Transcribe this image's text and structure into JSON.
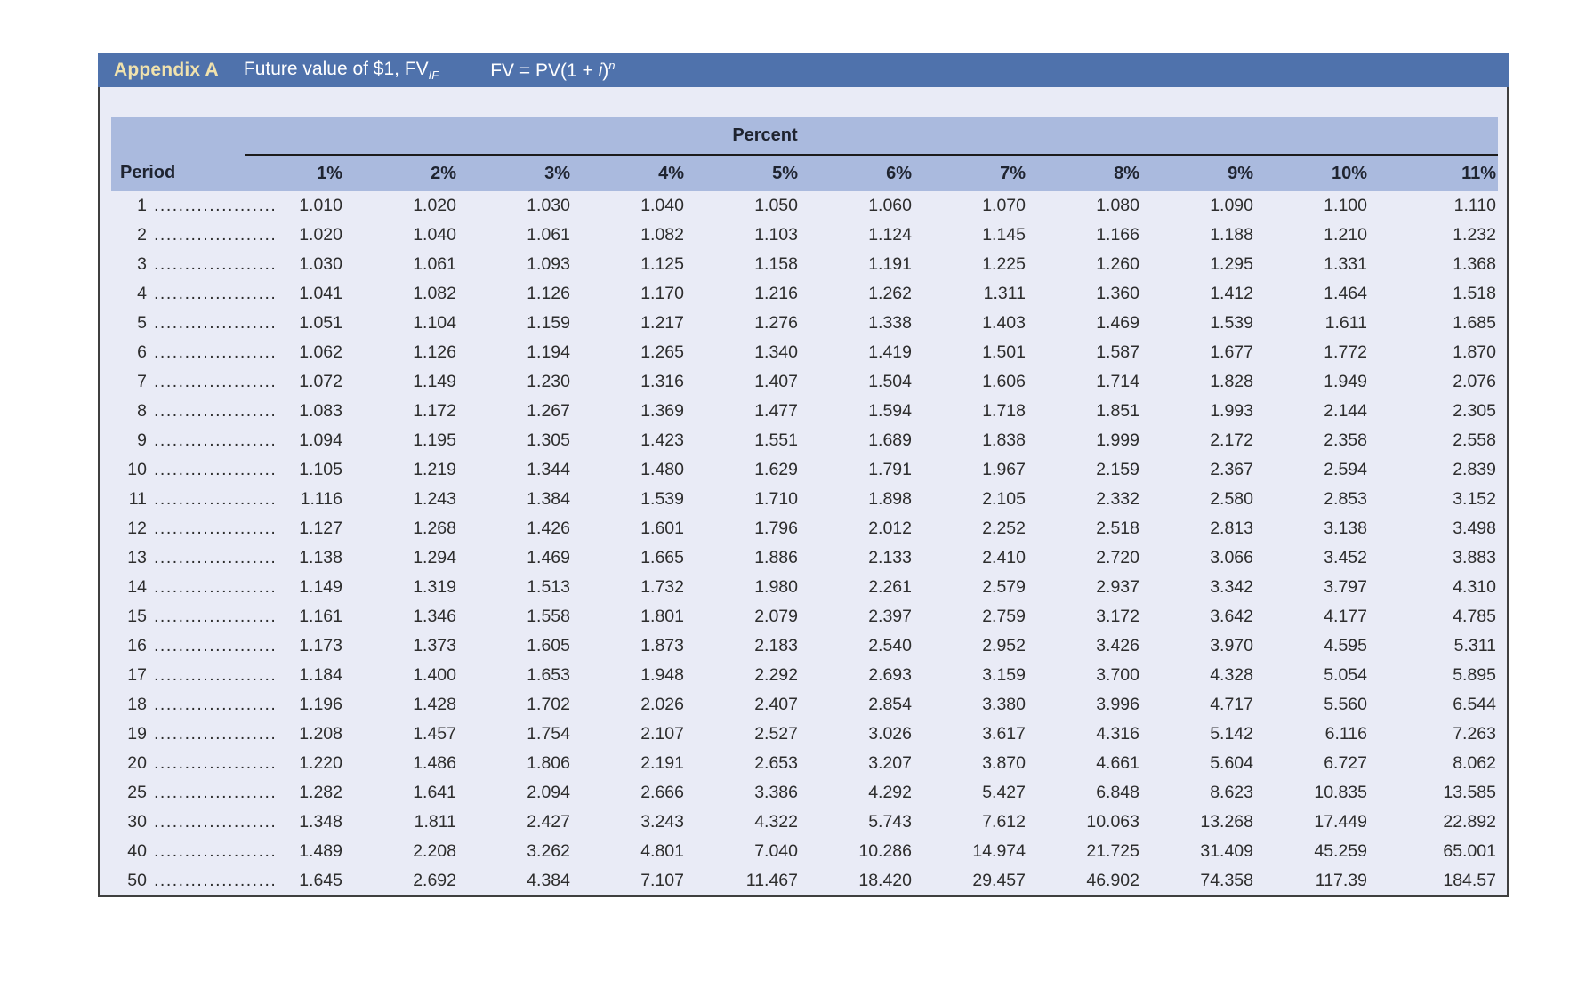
{
  "header": {
    "appendix_label": "Appendix A",
    "title_prefix": "Future value of $1, FV",
    "title_sub": "IF",
    "formula": {
      "lhs": "FV = PV(1 + ",
      "i": "i",
      "rhs": ")",
      "exp": "n"
    }
  },
  "colors": {
    "title_bar_blue": "#4f72ac",
    "appendix_label_cream": "#f0e2ad",
    "header_band_periwinkle": "#aabade",
    "body_lavender": "#e9ebf6",
    "text_dark": "#2d2d2d"
  },
  "table": {
    "group_header": "Percent",
    "period_header": "Period",
    "leader": "....................",
    "columns": [
      "1%",
      "2%",
      "3%",
      "4%",
      "5%",
      "6%",
      "7%",
      "8%",
      "9%",
      "10%",
      "11%"
    ],
    "rows": [
      {
        "period": "1",
        "values": [
          "1.010",
          "1.020",
          "1.030",
          "1.040",
          "1.050",
          "1.060",
          "1.070",
          "1.080",
          "1.090",
          "1.100",
          "1.110"
        ]
      },
      {
        "period": "2",
        "values": [
          "1.020",
          "1.040",
          "1.061",
          "1.082",
          "1.103",
          "1.124",
          "1.145",
          "1.166",
          "1.188",
          "1.210",
          "1.232"
        ]
      },
      {
        "period": "3",
        "values": [
          "1.030",
          "1.061",
          "1.093",
          "1.125",
          "1.158",
          "1.191",
          "1.225",
          "1.260",
          "1.295",
          "1.331",
          "1.368"
        ]
      },
      {
        "period": "4",
        "values": [
          "1.041",
          "1.082",
          "1.126",
          "1.170",
          "1.216",
          "1.262",
          "1.311",
          "1.360",
          "1.412",
          "1.464",
          "1.518"
        ]
      },
      {
        "period": "5",
        "values": [
          "1.051",
          "1.104",
          "1.159",
          "1.217",
          "1.276",
          "1.338",
          "1.403",
          "1.469",
          "1.539",
          "1.611",
          "1.685"
        ]
      },
      {
        "period": "6",
        "values": [
          "1.062",
          "1.126",
          "1.194",
          "1.265",
          "1.340",
          "1.419",
          "1.501",
          "1.587",
          "1.677",
          "1.772",
          "1.870"
        ]
      },
      {
        "period": "7",
        "values": [
          "1.072",
          "1.149",
          "1.230",
          "1.316",
          "1.407",
          "1.504",
          "1.606",
          "1.714",
          "1.828",
          "1.949",
          "2.076"
        ]
      },
      {
        "period": "8",
        "values": [
          "1.083",
          "1.172",
          "1.267",
          "1.369",
          "1.477",
          "1.594",
          "1.718",
          "1.851",
          "1.993",
          "2.144",
          "2.305"
        ]
      },
      {
        "period": "9",
        "values": [
          "1.094",
          "1.195",
          "1.305",
          "1.423",
          "1.551",
          "1.689",
          "1.838",
          "1.999",
          "2.172",
          "2.358",
          "2.558"
        ]
      },
      {
        "period": "10",
        "values": [
          "1.105",
          "1.219",
          "1.344",
          "1.480",
          "1.629",
          "1.791",
          "1.967",
          "2.159",
          "2.367",
          "2.594",
          "2.839"
        ]
      },
      {
        "period": "11",
        "values": [
          "1.116",
          "1.243",
          "1.384",
          "1.539",
          "1.710",
          "1.898",
          "2.105",
          "2.332",
          "2.580",
          "2.853",
          "3.152"
        ]
      },
      {
        "period": "12",
        "values": [
          "1.127",
          "1.268",
          "1.426",
          "1.601",
          "1.796",
          "2.012",
          "2.252",
          "2.518",
          "2.813",
          "3.138",
          "3.498"
        ]
      },
      {
        "period": "13",
        "values": [
          "1.138",
          "1.294",
          "1.469",
          "1.665",
          "1.886",
          "2.133",
          "2.410",
          "2.720",
          "3.066",
          "3.452",
          "3.883"
        ]
      },
      {
        "period": "14",
        "values": [
          "1.149",
          "1.319",
          "1.513",
          "1.732",
          "1.980",
          "2.261",
          "2.579",
          "2.937",
          "3.342",
          "3.797",
          "4.310"
        ]
      },
      {
        "period": "15",
        "values": [
          "1.161",
          "1.346",
          "1.558",
          "1.801",
          "2.079",
          "2.397",
          "2.759",
          "3.172",
          "3.642",
          "4.177",
          "4.785"
        ]
      },
      {
        "period": "16",
        "values": [
          "1.173",
          "1.373",
          "1.605",
          "1.873",
          "2.183",
          "2.540",
          "2.952",
          "3.426",
          "3.970",
          "4.595",
          "5.311"
        ]
      },
      {
        "period": "17",
        "values": [
          "1.184",
          "1.400",
          "1.653",
          "1.948",
          "2.292",
          "2.693",
          "3.159",
          "3.700",
          "4.328",
          "5.054",
          "5.895"
        ]
      },
      {
        "period": "18",
        "values": [
          "1.196",
          "1.428",
          "1.702",
          "2.026",
          "2.407",
          "2.854",
          "3.380",
          "3.996",
          "4.717",
          "5.560",
          "6.544"
        ]
      },
      {
        "period": "19",
        "values": [
          "1.208",
          "1.457",
          "1.754",
          "2.107",
          "2.527",
          "3.026",
          "3.617",
          "4.316",
          "5.142",
          "6.116",
          "7.263"
        ]
      },
      {
        "period": "20",
        "values": [
          "1.220",
          "1.486",
          "1.806",
          "2.191",
          "2.653",
          "3.207",
          "3.870",
          "4.661",
          "5.604",
          "6.727",
          "8.062"
        ]
      },
      {
        "period": "25",
        "values": [
          "1.282",
          "1.641",
          "2.094",
          "2.666",
          "3.386",
          "4.292",
          "5.427",
          "6.848",
          "8.623",
          "10.835",
          "13.585"
        ]
      },
      {
        "period": "30",
        "values": [
          "1.348",
          "1.811",
          "2.427",
          "3.243",
          "4.322",
          "5.743",
          "7.612",
          "10.063",
          "13.268",
          "17.449",
          "22.892"
        ]
      },
      {
        "period": "40",
        "values": [
          "1.489",
          "2.208",
          "3.262",
          "4.801",
          "7.040",
          "10.286",
          "14.974",
          "21.725",
          "31.409",
          "45.259",
          "65.001"
        ]
      },
      {
        "period": "50",
        "values": [
          "1.645",
          "2.692",
          "4.384",
          "7.107",
          "11.467",
          "18.420",
          "29.457",
          "46.902",
          "74.358",
          "117.39",
          "184.57"
        ]
      }
    ]
  }
}
